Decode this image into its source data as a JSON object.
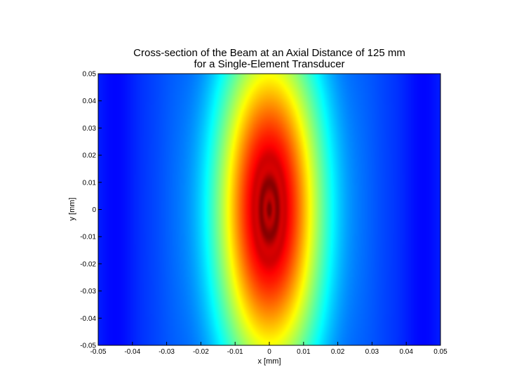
{
  "chart_data": {
    "type": "heatmap",
    "title": "Cross-section of the Beam at an Axial Distance of 125 mm",
    "subtitle": "for a Single-Element Transducer",
    "xlabel": "x [mm]",
    "ylabel": "y [mm]",
    "xlim": [
      -0.05,
      0.05
    ],
    "ylim": [
      -0.05,
      0.05
    ],
    "x_ticks": [
      "-0.05",
      "-0.04",
      "-0.03",
      "-0.02",
      "-0.01",
      "0",
      "0.01",
      "0.02",
      "0.03",
      "0.04",
      "0.05"
    ],
    "y_ticks": [
      "0.05",
      "0.04",
      "0.03",
      "0.02",
      "0.01",
      "0",
      "-0.01",
      "-0.02",
      "-0.03",
      "-0.04",
      "-0.05"
    ],
    "x_tick_values": [
      -0.05,
      -0.04,
      -0.03,
      -0.02,
      -0.01,
      0,
      0.01,
      0.02,
      0.03,
      0.04,
      0.05
    ],
    "y_tick_values": [
      0.05,
      0.04,
      0.03,
      0.02,
      0.01,
      0,
      -0.01,
      -0.02,
      -0.03,
      -0.04,
      -0.05
    ],
    "colormap": "jet",
    "beam": {
      "center": [
        0,
        0
      ],
      "sigma_x": 0.011,
      "sigma_y": 0.045,
      "side_lobe_x": 0.045
    },
    "grid": false,
    "colors": {
      "low": "#1a2a8f",
      "high": "#8b1f2a"
    }
  }
}
